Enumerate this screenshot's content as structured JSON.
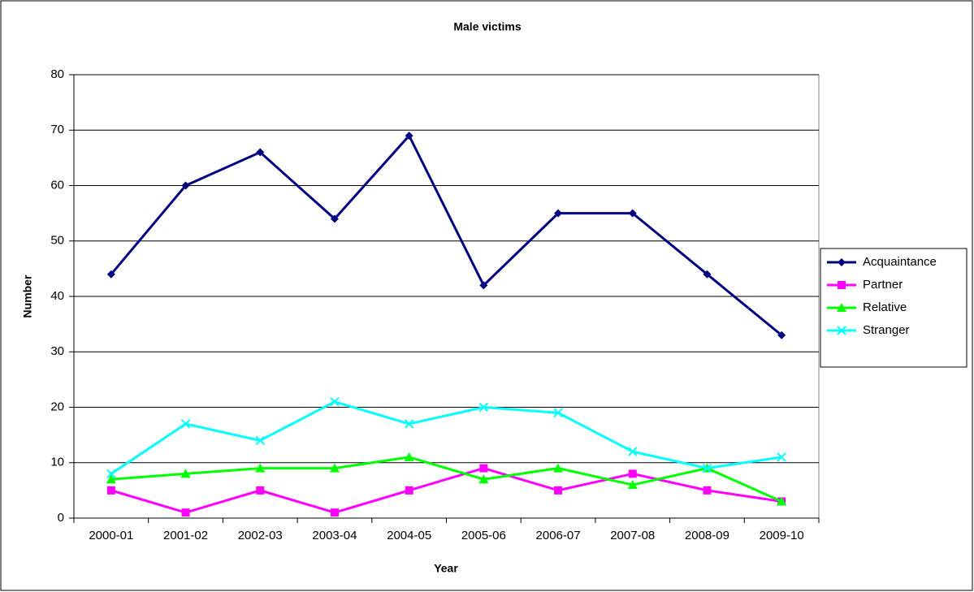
{
  "chart_data": {
    "type": "line",
    "title": "Male victims",
    "x_label": "Year",
    "y_label": "Number",
    "categories": [
      "2000-01",
      "2001-02",
      "2002-03",
      "2003-04",
      "2004-05",
      "2005-06",
      "2006-07",
      "2007-08",
      "2008-09",
      "2009-10"
    ],
    "series": [
      {
        "name": "Acquaintance",
        "color": "#000080",
        "marker": "diamond",
        "values": [
          44,
          60,
          66,
          54,
          69,
          42,
          55,
          55,
          44,
          33
        ]
      },
      {
        "name": "Partner",
        "color": "#ff00ff",
        "marker": "square",
        "values": [
          5,
          1,
          5,
          1,
          5,
          9,
          5,
          8,
          5,
          3
        ]
      },
      {
        "name": "Relative",
        "color": "#00ff00",
        "marker": "triangle",
        "values": [
          7,
          8,
          9,
          9,
          11,
          7,
          9,
          6,
          9,
          3
        ]
      },
      {
        "name": "Stranger",
        "color": "#00ffff",
        "marker": "x",
        "values": [
          8,
          17,
          14,
          21,
          17,
          20,
          19,
          12,
          9,
          11
        ]
      }
    ],
    "ylim": [
      0,
      80
    ],
    "yticks": [
      0,
      10,
      20,
      30,
      40,
      50,
      60,
      70,
      80
    ],
    "grid": true,
    "legend": "right"
  }
}
